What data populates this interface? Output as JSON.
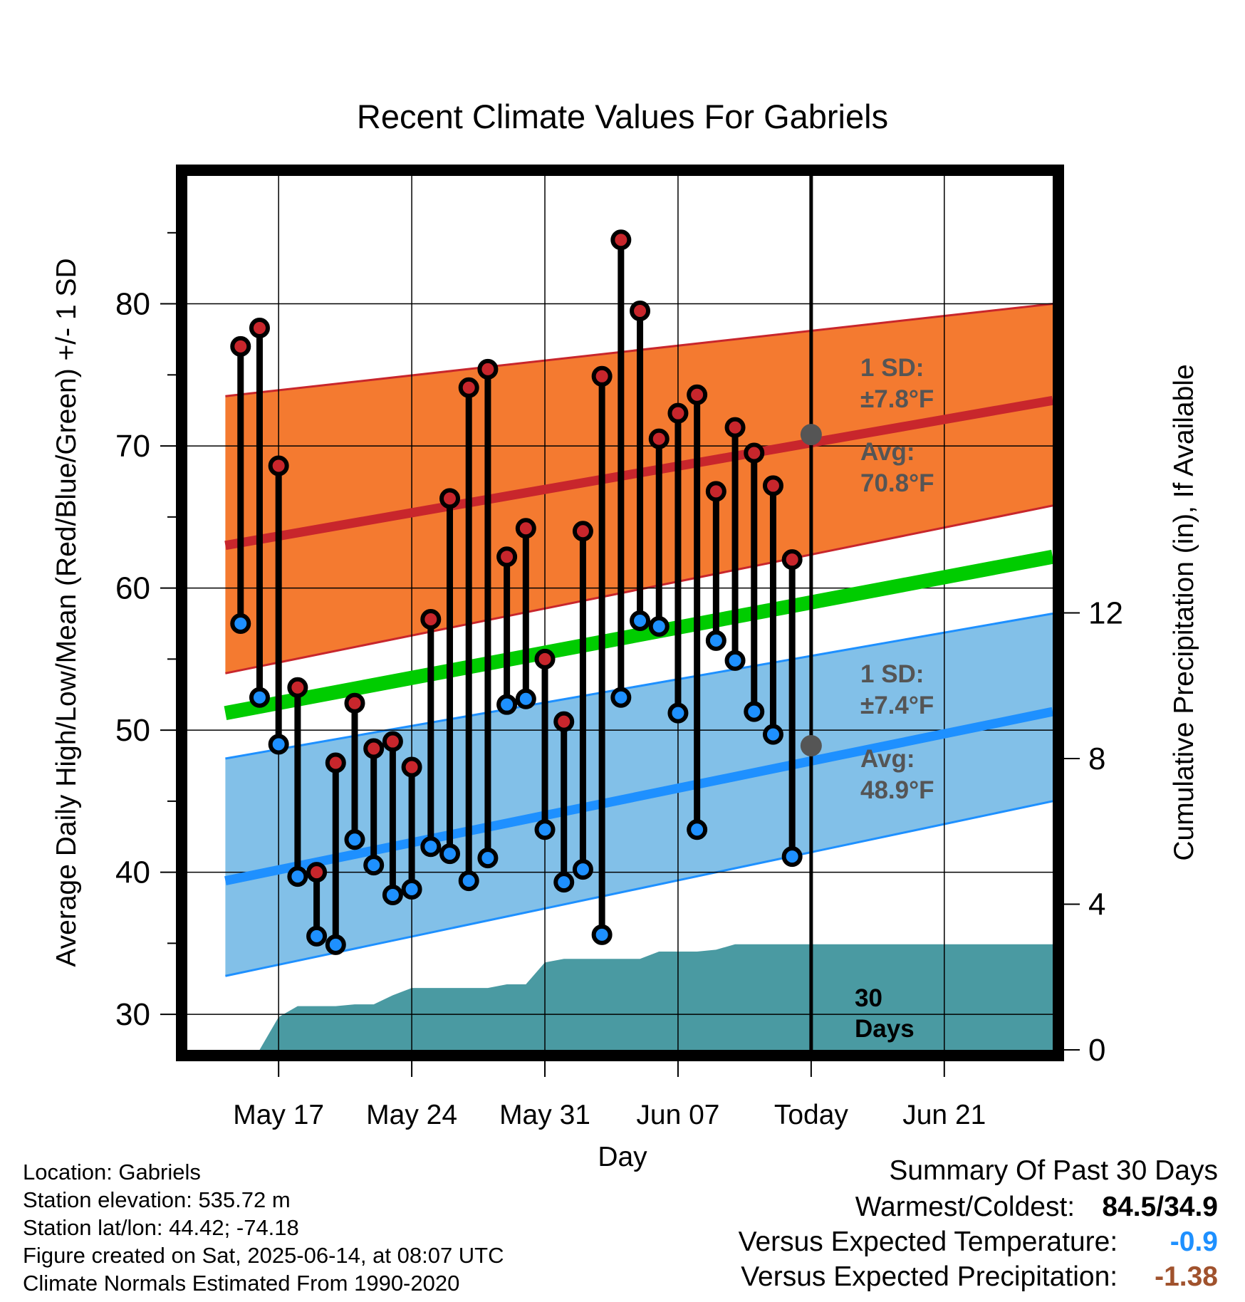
{
  "chart_data": {
    "type": "line",
    "title": "Recent Climate Values For Gabriels",
    "xlabel": "Day",
    "ylabel": "Average Daily High/Low/Mean (Red/Blue/Green) +/- 1 SD",
    "y2label": "Cumulative Precipitation (in), If Available",
    "ylim": [
      27.5,
      89
    ],
    "y2lim": [
      0,
      24
    ],
    "xlim": [
      -4.8,
      40.7
    ],
    "x_ticks": [
      {
        "day": 0,
        "label": "May 17"
      },
      {
        "day": 7,
        "label": "May 24"
      },
      {
        "day": 14,
        "label": "May 31"
      },
      {
        "day": 21,
        "label": "Jun 07"
      },
      {
        "day": 28,
        "label": "Today"
      },
      {
        "day": 35,
        "label": "Jun 21"
      }
    ],
    "y_ticks": [
      30,
      40,
      50,
      60,
      70,
      80
    ],
    "y2_ticks": [
      0,
      4,
      8,
      12
    ],
    "grid": true,
    "colors": {
      "high": "#c8262c",
      "low": "#1e90ff",
      "mean": "#00cc00",
      "high_band": "#f47a30",
      "low_band": "#82c0e8",
      "precip": "#4a9aa2",
      "avg_marker": "#555555",
      "versus_temp": "#1e90ff",
      "versus_precip": "#a0522d"
    },
    "normals": {
      "day": [
        -2.8,
        40.7
      ],
      "high_avg": [
        63,
        73.2
      ],
      "high_upper": [
        73.5,
        80
      ],
      "high_lower": [
        54,
        65.8
      ],
      "low_avg": [
        39.4,
        51.3
      ],
      "low_upper": [
        48,
        58.2
      ],
      "low_lower": [
        32.7,
        45
      ],
      "mean_avg": [
        51.2,
        62.2
      ]
    },
    "daily": {
      "day": [
        -2,
        -1,
        0,
        1,
        2,
        3,
        4,
        5,
        6,
        7,
        8,
        9,
        10,
        11,
        12,
        13,
        14,
        15,
        16,
        17,
        18,
        19,
        20,
        21,
        22,
        23,
        24,
        25,
        26,
        27
      ],
      "high": [
        77,
        78.3,
        68.6,
        53,
        40,
        47.7,
        51.9,
        48.7,
        49.2,
        47.4,
        57.8,
        66.3,
        74.1,
        75.4,
        62.2,
        64.2,
        55,
        50.6,
        64,
        74.9,
        84.5,
        79.5,
        70.5,
        72.3,
        73.6,
        66.8,
        71.3,
        69.5,
        67.2,
        62
      ],
      "low": [
        57.5,
        52.3,
        49,
        39.7,
        35.5,
        34.9,
        42.3,
        40.5,
        38.4,
        38.8,
        41.8,
        41.3,
        39.4,
        41,
        51.8,
        52.2,
        43,
        39.3,
        40.2,
        35.6,
        52.3,
        57.7,
        57.3,
        51.2,
        43,
        56.3,
        54.9,
        51.3,
        49.7,
        41.1
      ]
    },
    "precip": {
      "day": [
        -1,
        0,
        1,
        2,
        3,
        4,
        5,
        6,
        7,
        8,
        9,
        10,
        11,
        12,
        13,
        14,
        15,
        16,
        17,
        18,
        19,
        20,
        21,
        22,
        23,
        24,
        25,
        26,
        27,
        28,
        40.7
      ],
      "cumulative": [
        0,
        0.9,
        1.2,
        1.2,
        1.2,
        1.25,
        1.25,
        1.5,
        1.7,
        1.7,
        1.7,
        1.7,
        1.7,
        1.8,
        1.8,
        2.4,
        2.5,
        2.5,
        2.5,
        2.5,
        2.5,
        2.7,
        2.7,
        2.7,
        2.75,
        2.9,
        2.9,
        2.9,
        2.9,
        2.9,
        2.9
      ]
    },
    "annotations": {
      "high_sd_label": "1 SD:",
      "high_sd_value": "±7.8°F",
      "high_avg_label": "Avg:",
      "high_avg_value": "70.8°F",
      "high_avg_point": 70.8,
      "low_sd_label": "1 SD:",
      "low_sd_value": "±7.4°F",
      "low_avg_label": "Avg:",
      "low_avg_value": "48.9°F",
      "low_avg_point": 48.9,
      "days_label_1": "30",
      "days_label_2": "Days",
      "today_day": 28
    }
  },
  "footer": {
    "location": "Location: Gabriels",
    "elevation": "Station elevation: 535.72 m",
    "latlon": "Station lat/lon: 44.42; -74.18",
    "created": "Figure created on Sat, 2025-06-14, at 08:07 UTC",
    "normals": "Climate Normals Estimated From 1990-2020"
  },
  "summary": {
    "heading": "Summary Of Past 30 Days",
    "warm_cold_label": "Warmest/Coldest:",
    "warm_cold_value": "84.5/34.9",
    "vs_temp_label": "Versus Expected Temperature:",
    "vs_temp_value": "-0.9",
    "vs_precip_label": "Versus Expected Precipitation:",
    "vs_precip_value": "-1.38"
  }
}
